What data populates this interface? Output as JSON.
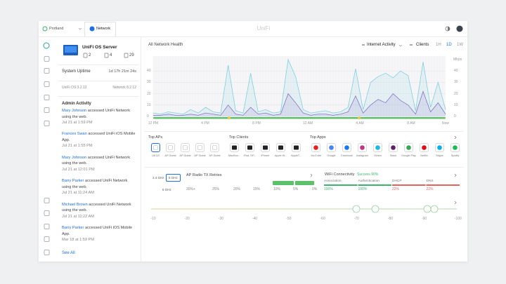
{
  "topbar": {
    "site": "Portland",
    "app": "Network",
    "title": "UniFi"
  },
  "device": {
    "name": "UniFi OS Server",
    "stats": [
      2,
      4,
      29
    ]
  },
  "uptime": {
    "label": "System Uptime",
    "value": "1d 17h 21m 24s"
  },
  "versions": [
    "UniFi OS 3.2.12",
    "Network 8.2.12"
  ],
  "admin_activity": {
    "title": "Admin Activity",
    "see_all": "See All",
    "entries": [
      {
        "user": "Mary Johnson",
        "action": "accessed UniFi Network using the web.",
        "date": "Jul 21 at 1:59 PM"
      },
      {
        "user": "Frances Swan",
        "action": "accessed UniFi iOS Mobile App.",
        "date": "Jul 21 at 1:55 PM"
      },
      {
        "user": "Mary Johnson",
        "action": "accessed UniFi Network using the web.",
        "date": "Jul 21 at 12:01 PM"
      },
      {
        "user": "Barry Parker",
        "action": "accessed UniFi Network using the web.",
        "date": "Jul 21 at 11:24 AM"
      },
      {
        "user": "Michael Brown",
        "action": "accessed UniFi Network using the web.",
        "date": "Jul 21 at 11:22 AM"
      },
      {
        "user": "Barry Parker",
        "action": "accessed UniFi iOS Mobile App.",
        "date": "Mar 18 at 1:59 PM"
      }
    ]
  },
  "health": {
    "title": "All Network Health",
    "metric": "Internet Activity",
    "clients": "Clients",
    "ranges": [
      "1H",
      "1D",
      "1W"
    ],
    "active_range": 1
  },
  "health_chart": {
    "type": "line",
    "unit": "Mbps",
    "ylim": [
      0,
      50
    ],
    "yticks": [
      0,
      10,
      20,
      30,
      40
    ],
    "x_labels": [
      "12 PM",
      "4 PM",
      "8 PM",
      "12 AM",
      "4 AM",
      "8 AM",
      "Now"
    ],
    "series": [
      {
        "color": "#7fd0de",
        "values": [
          3,
          2,
          4,
          3,
          2,
          6,
          3,
          8,
          4,
          3,
          45,
          5,
          3,
          38,
          4,
          6,
          3,
          4,
          50,
          35,
          6,
          3,
          4,
          5,
          3,
          4,
          8,
          42,
          6,
          30,
          35,
          38,
          34,
          40,
          36,
          5,
          48,
          8,
          30,
          6
        ]
      },
      {
        "color": "#8576c9",
        "values": [
          1,
          1,
          2,
          1,
          1,
          2,
          1,
          3,
          2,
          1,
          10,
          2,
          1,
          8,
          2,
          3,
          1,
          2,
          20,
          12,
          3,
          1,
          2,
          2,
          1,
          2,
          4,
          18,
          3,
          10,
          15,
          12,
          20,
          14,
          10,
          2,
          22,
          4,
          12,
          2
        ]
      }
    ]
  },
  "top_aps": {
    "title": "Top APs",
    "items": [
      "U6 LR",
      "AP Guest",
      "AP Guest",
      "AP Guest",
      "AP Guest"
    ]
  },
  "top_clients": {
    "title": "Top Clients",
    "items": [
      "MacBoo...",
      "iPad, DP...",
      "iPhone",
      "Apple W...",
      "AppleT..."
    ]
  },
  "top_apps": {
    "title": "Top Apps",
    "items": [
      "YouTube",
      "Google",
      "Facebook",
      "Instagram",
      "Vimeo",
      "Slack",
      "Google Play",
      "Netflix",
      "Skype",
      "Spotify"
    ],
    "colors": [
      "#e62117",
      "#4285f4",
      "#1877f2",
      "#c13584",
      "#1ab7ea",
      "#611f69",
      "#34a853",
      "#e50914",
      "#00aff0",
      "#1db954"
    ]
  },
  "radio": {
    "bands": [
      "2.4 GHz",
      "5 GHz",
      "6 GHz"
    ],
    "active_band": 1,
    "title": "AP Radio TX Retries",
    "scale": [
      "30%+",
      "25%",
      "20%",
      "15%",
      "10%",
      "5%",
      "0%"
    ]
  },
  "wifi": {
    "title": "WiFi Connectivity",
    "success": "Success 90%",
    "steps": [
      {
        "label": "Association",
        "value": "100%",
        "color": "#3cb371"
      },
      {
        "label": "Authentication",
        "value": "100%",
        "color": "#3cb371"
      },
      {
        "label": "DHCP",
        "value": "22%",
        "color": "#e06464"
      },
      {
        "label": "DNS",
        "value": "22%",
        "color": "#e06464"
      }
    ]
  },
  "signal": {
    "labels": [
      "-10",
      "-20",
      "-30",
      "-40",
      "-50",
      "-60",
      "-70",
      "-80",
      "-90",
      "-100"
    ]
  }
}
